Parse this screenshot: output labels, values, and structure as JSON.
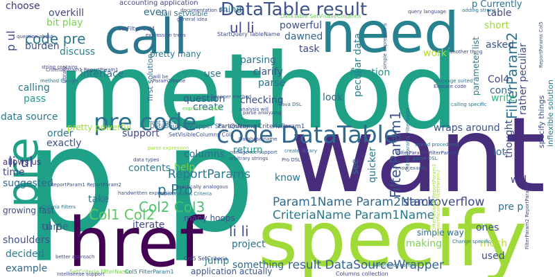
{
  "cloud": {
    "words": [
      {
        "text": "method",
        "color": "#1fa187"
      },
      {
        "text": "want",
        "color": "#472d7b"
      },
      {
        "text": "p p",
        "color": "#1fa187"
      },
      {
        "text": "specify",
        "color": "#a0da39"
      },
      {
        "text": "href",
        "color": "#440154"
      },
      {
        "text": "need",
        "color": "#26828e"
      },
      {
        "text": "call",
        "color": "#2a788e"
      },
      {
        "text": "pre",
        "color": "#1fa187"
      },
      {
        "text": "code DataTable",
        "color": "#31688e"
      },
      {
        "text": "pre code",
        "color": "#2c728e"
      },
      {
        "text": "DataTable result",
        "color": "#3b528b"
      },
      {
        "text": "Param1Name Param2Name",
        "color": "#31688e"
      },
      {
        "text": "CriteriaName Param1Name",
        "color": "#2a788e"
      },
      {
        "text": "result DataSourceWrapper",
        "color": "#33638d"
      },
      {
        "text": "Col1 Col2",
        "color": "#5ec962"
      },
      {
        "text": "Col2 Col3",
        "color": "#4ac16d"
      },
      {
        "text": "p Pro",
        "color": "#2c728e"
      },
      {
        "text": "li li",
        "color": "#3b528b"
      },
      {
        "text": "li ul",
        "color": "#3e4989"
      },
      {
        "text": "ul li",
        "color": "#3e4989"
      },
      {
        "text": "code pre",
        "color": "#2a788e"
      },
      {
        "text": "FilterParam1",
        "color": "#3b528b"
      },
      {
        "text": "FilterParam2",
        "color": "#2c728e"
      },
      {
        "text": "stackoverflow",
        "color": "#3e4989"
      },
      {
        "text": "ReportParams",
        "color": "#2a788e"
      },
      {
        "text": "data source",
        "color": "#2a788e"
      },
      {
        "text": "interface",
        "color": "#2c728e"
      },
      {
        "text": "choose",
        "color": "#46337e"
      },
      {
        "text": "overkill",
        "color": "#3e4989"
      },
      {
        "text": "bit play",
        "color": "#7ad151"
      },
      {
        "text": "burden",
        "color": "#3b528b"
      },
      {
        "text": "discuss",
        "color": "#26828e"
      },
      {
        "text": "calling",
        "color": "#2a788e"
      },
      {
        "text": "pass",
        "color": "#1f9e89"
      },
      {
        "text": "powerful",
        "color": "#3b528b"
      },
      {
        "text": "dawned",
        "color": "#31688e"
      },
      {
        "text": "task",
        "color": "#3e4989"
      },
      {
        "text": "function",
        "color": "#21918c"
      },
      {
        "text": "work",
        "color": "#b5de2b"
      },
      {
        "text": "parsing",
        "color": "#2c728e"
      },
      {
        "text": "clarify",
        "color": "#3b528b"
      },
      {
        "text": "parse",
        "color": "#2c728e"
      },
      {
        "text": "checking",
        "color": "#3e4989"
      },
      {
        "text": "question",
        "color": "#3b528b"
      },
      {
        "text": "look",
        "color": "#31688e"
      },
      {
        "text": "create",
        "color": "#2c728e"
      },
      {
        "text": "write",
        "color": "#35b779"
      },
      {
        "text": "cons",
        "color": "#31688e"
      },
      {
        "text": "lot",
        "color": "#2c728e"
      },
      {
        "text": "will",
        "color": "#443983"
      },
      {
        "text": "wraps around",
        "color": "#3b528b"
      },
      {
        "text": "return",
        "color": "#1f9e89"
      },
      {
        "text": "know",
        "color": "#2a788e"
      },
      {
        "text": "help",
        "color": "#7ad151"
      },
      {
        "text": "support",
        "color": "#3e4989"
      },
      {
        "text": "columns",
        "color": "#31688e"
      },
      {
        "text": "contents",
        "color": "#2a788e"
      },
      {
        "text": "exactly",
        "color": "#3b528b"
      },
      {
        "text": "order",
        "color": "#2a788e"
      },
      {
        "text": "allows us",
        "color": "#46337e"
      },
      {
        "text": "time",
        "color": "#3e4989"
      },
      {
        "text": "suggested",
        "color": "#31688e"
      },
      {
        "text": "take",
        "color": "#2c728e"
      },
      {
        "text": "iterate",
        "color": "#3e4989"
      },
      {
        "text": "many hoops",
        "color": "#3b528b"
      },
      {
        "text": "project",
        "color": "#2c728e"
      },
      {
        "text": "jump",
        "color": "#26828e"
      },
      {
        "text": "something",
        "color": "#31688e"
      },
      {
        "text": "application actually",
        "color": "#3b528b"
      },
      {
        "text": "ul p",
        "color": "#3e4989"
      },
      {
        "text": "came",
        "color": "#2c728e"
      },
      {
        "text": "shoulders",
        "color": "#3b528b"
      },
      {
        "text": "decided",
        "color": "#2a788e"
      },
      {
        "text": "example",
        "color": "#31688e"
      },
      {
        "text": "growing fast",
        "color": "#3e4989"
      },
      {
        "text": "making",
        "color": "#7ad151"
      },
      {
        "text": "simple way",
        "color": "#31688e"
      },
      {
        "text": "used",
        "color": "#3e4989"
      },
      {
        "text": "much",
        "color": "#b5de2b"
      },
      {
        "text": "ones",
        "color": "#3b528b"
      },
      {
        "text": "pre p",
        "color": "#2c728e"
      },
      {
        "text": "short",
        "color": "#a0da39"
      },
      {
        "text": "asked",
        "color": "#3b528b"
      },
      {
        "text": "table",
        "color": "#3e4989"
      },
      {
        "text": "p Currently",
        "color": "#2c728e"
      },
      {
        "text": "Col4",
        "color": "#3e4989"
      },
      {
        "text": "mind",
        "color": "#2c728e"
      },
      {
        "text": "even",
        "color": "#31688e"
      },
      {
        "text": "call SetVisible",
        "color": "#2c728e"
      },
      {
        "text": "accounting application",
        "color": "#3e4989"
      },
      {
        "text": "pretty many",
        "color": "#2a788e"
      },
      {
        "text": "pretty powerful",
        "color": "#a0da39"
      },
      {
        "text": "first solution",
        "color": "#2c728e"
      },
      {
        "text": "peculiar data",
        "color": "#26828e"
      },
      {
        "text": "parameter list",
        "color": "#2a788e"
      },
      {
        "text": "rather peculiar",
        "color": "#3e4989"
      },
      {
        "text": "thought",
        "color": "#3e4989"
      },
      {
        "text": "quicker",
        "color": "#2a788e"
      },
      {
        "text": "see",
        "color": "#2c728e"
      },
      {
        "text": "specify things",
        "color": "#3e4989"
      },
      {
        "text": "inflexible solution",
        "color": "#2a788e"
      },
      {
        "text": "p ul",
        "color": "#3e4989"
      },
      {
        "text": "use",
        "color": "#2a788e"
      },
      {
        "text": "DataSourceWrapper StartQuery",
        "color": "#31688e"
      },
      {
        "text": "ParamName CriteriaParam1",
        "color": "#3e4989"
      },
      {
        "text": "SetFilter Col4",
        "color": "#3b528b"
      },
      {
        "text": "StartQuery TableName",
        "color": "#3e4989"
      },
      {
        "text": "SetVisibleColumns Col1",
        "color": "#3b528b"
      },
      {
        "text": "Col5 SetCriteria",
        "color": "#3e4989"
      },
      {
        "text": "SetCriteria FilterName",
        "color": "#7ad151"
      },
      {
        "text": "Columns collection",
        "color": "#3e4989"
      },
      {
        "text": "Col5 FilterParam1",
        "color": "#2c728e"
      },
      {
        "text": "DataTable SetVisibleColumns",
        "color": "#6ccd5a"
      },
      {
        "text": "CriteriaName ReportParam1",
        "color": "#a0da39"
      },
      {
        "text": "ReportParams Criteria",
        "color": "#2c728e"
      },
      {
        "text": "intelligence support",
        "color": "#3b528b"
      },
      {
        "text": "arbitrary strings",
        "color": "#3b528b"
      },
      {
        "text": "expression trees",
        "color": "#3e4989"
      },
      {
        "text": "documentation DSL",
        "color": "#3e4989"
      },
      {
        "text": "general idea",
        "color": "#3b528b"
      },
      {
        "text": "adding strong",
        "color": "#2c728e"
      },
      {
        "text": "another thing",
        "color": "#3e4989"
      },
      {
        "text": "calling specific",
        "color": "#2c728e"
      },
      {
        "text": "language suited",
        "color": "#2c728e"
      },
      {
        "text": "Execute code",
        "color": "#3e4989"
      },
      {
        "text": "expression quite",
        "color": "#6ccd5a"
      },
      {
        "text": "analysis will",
        "color": "#3e4989"
      },
      {
        "text": "Database name",
        "color": "#3e4989"
      },
      {
        "text": "string contains",
        "color": "#3e4989"
      },
      {
        "text": "must figure",
        "color": "#2c728e"
      },
      {
        "text": "ReportParam1 ReportParam2",
        "color": "#3b528b"
      },
      {
        "text": "parse expression",
        "color": "#a0da39"
      },
      {
        "text": "practically analogous",
        "color": "#3e4989"
      },
      {
        "text": "handwritten expression",
        "color": "#3b528b"
      },
      {
        "text": "Criteria Filters",
        "color": "#2c728e"
      },
      {
        "text": "better approach",
        "color": "#3e4989"
      },
      {
        "text": "parameter name",
        "color": "#2c728e"
      },
      {
        "text": "Change specific",
        "color": "#2c728e"
      },
      {
        "text": "simple expressions",
        "color": "#3b528b"
      },
      {
        "text": "CriteriaParam1 FilterName",
        "color": "#2c728e"
      },
      {
        "text": "FilterParam2 ReportParam1",
        "color": "#3e4989"
      },
      {
        "text": "ReportParams FilterParam2",
        "color": "#b5de2b"
      },
      {
        "text": "CriteriaParam1 ReportParam1",
        "color": "#3e4989"
      },
      {
        "text": "method though",
        "color": "#2c728e"
      },
      {
        "text": "wrapper method",
        "color": "#3b528b"
      },
      {
        "text": "parse analyzing",
        "color": "#3e4989"
      },
      {
        "text": "question about",
        "color": "#3e4989"
      },
      {
        "text": "query language",
        "color": "#3e4989"
      },
      {
        "text": "stored procedures",
        "color": "#2c728e"
      },
      {
        "text": "FilterParam1 FilterParam2",
        "color": "#3e4989"
      },
      {
        "text": "create library",
        "color": "#2c728e"
      },
      {
        "text": "data types",
        "color": "#3e4989"
      },
      {
        "text": "Pro DSL",
        "color": "#3e4989"
      },
      {
        "text": "know exactly",
        "color": "#3b528b"
      },
      {
        "text": "parse DSL",
        "color": "#2c728e"
      },
      {
        "text": "Java DSL",
        "color": "#2c728e"
      },
      {
        "text": "Intellisense support",
        "color": "#3e4989"
      },
      {
        "text": "will be",
        "color": "#3b528b"
      },
      {
        "text": "Library",
        "color": "#3e4989"
      },
      {
        "text": "Param2Name",
        "color": "#3e4989"
      },
      {
        "text": "ReportParams Col5",
        "color": "#3b528b"
      },
      {
        "text": "ParamName FilterParam1",
        "color": "#3e4989"
      }
    ]
  }
}
